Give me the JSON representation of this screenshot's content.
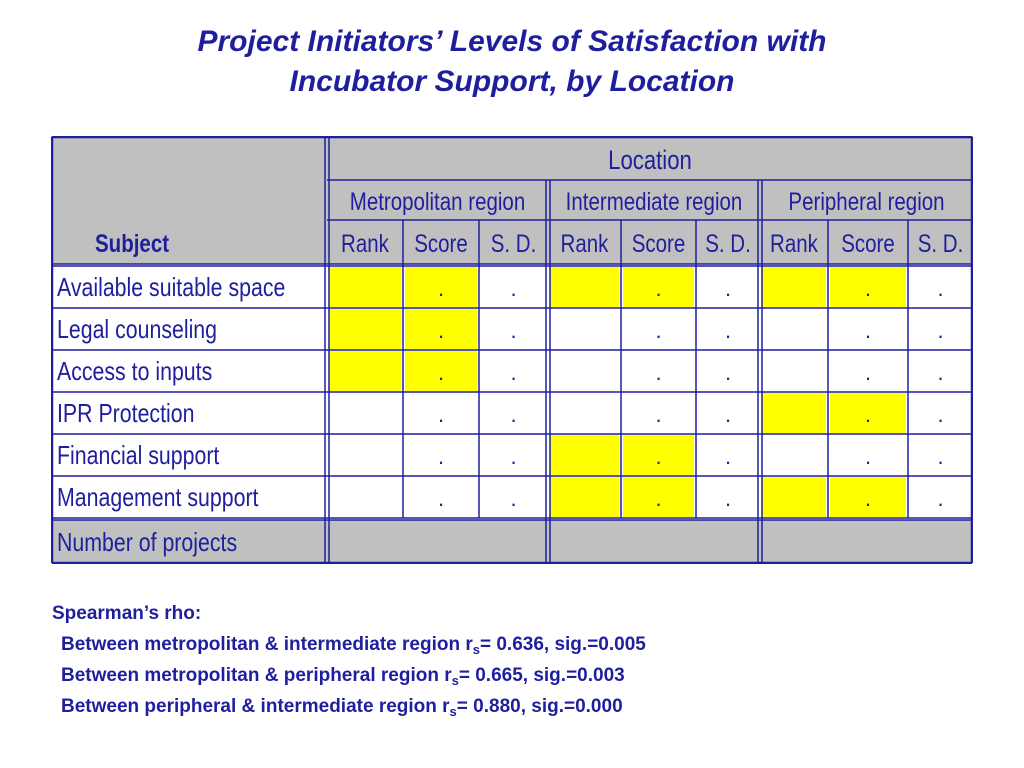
{
  "title": {
    "line1": "Project Initiators’ Levels of Satisfaction with",
    "line2": "Incubator Support, by Location"
  },
  "table": {
    "subject_header": "Subject",
    "location_header": "Location",
    "regions": [
      "Metropolitan region",
      "Intermediate region",
      "Peripheral region"
    ],
    "subcolumns": [
      "Rank",
      "Score",
      "S. D."
    ],
    "rows": [
      {
        "subject": "Available suitable space",
        "highlight": [
          true,
          true,
          false,
          true,
          true,
          false,
          true,
          true,
          false
        ]
      },
      {
        "subject": "Legal counseling",
        "highlight": [
          true,
          true,
          false,
          false,
          false,
          false,
          false,
          false,
          false
        ]
      },
      {
        "subject": "Access to inputs",
        "highlight": [
          true,
          true,
          false,
          false,
          false,
          false,
          false,
          false,
          false
        ]
      },
      {
        "subject": "IPR Protection",
        "highlight": [
          false,
          false,
          false,
          false,
          false,
          false,
          true,
          true,
          false
        ]
      },
      {
        "subject": "Financial support",
        "highlight": [
          false,
          false,
          false,
          true,
          true,
          false,
          false,
          false,
          false
        ]
      },
      {
        "subject": "Management support",
        "highlight": [
          false,
          false,
          false,
          true,
          true,
          false,
          true,
          true,
          false
        ]
      }
    ],
    "footer_label": "Number of projects",
    "cell_mark": ".",
    "colors": {
      "highlight": "#ffff00",
      "header_bg": "#c0c0c0",
      "border": "#1f1f9e",
      "text": "#1f1f9e"
    }
  },
  "spearman": {
    "heading": "Spearman’s rho:",
    "lines": [
      {
        "pre": "Between metropolitan & intermediate region r",
        "sub": "s",
        "post": "= 0.636, sig.=0.005"
      },
      {
        "pre": "Between metropolitan & peripheral region r",
        "sub": "s",
        "post": "= 0.665, sig.=0.003"
      },
      {
        "pre": "Between peripheral & intermediate region r",
        "sub": "s",
        "post": "= 0.880, sig.=0.000"
      }
    ]
  }
}
